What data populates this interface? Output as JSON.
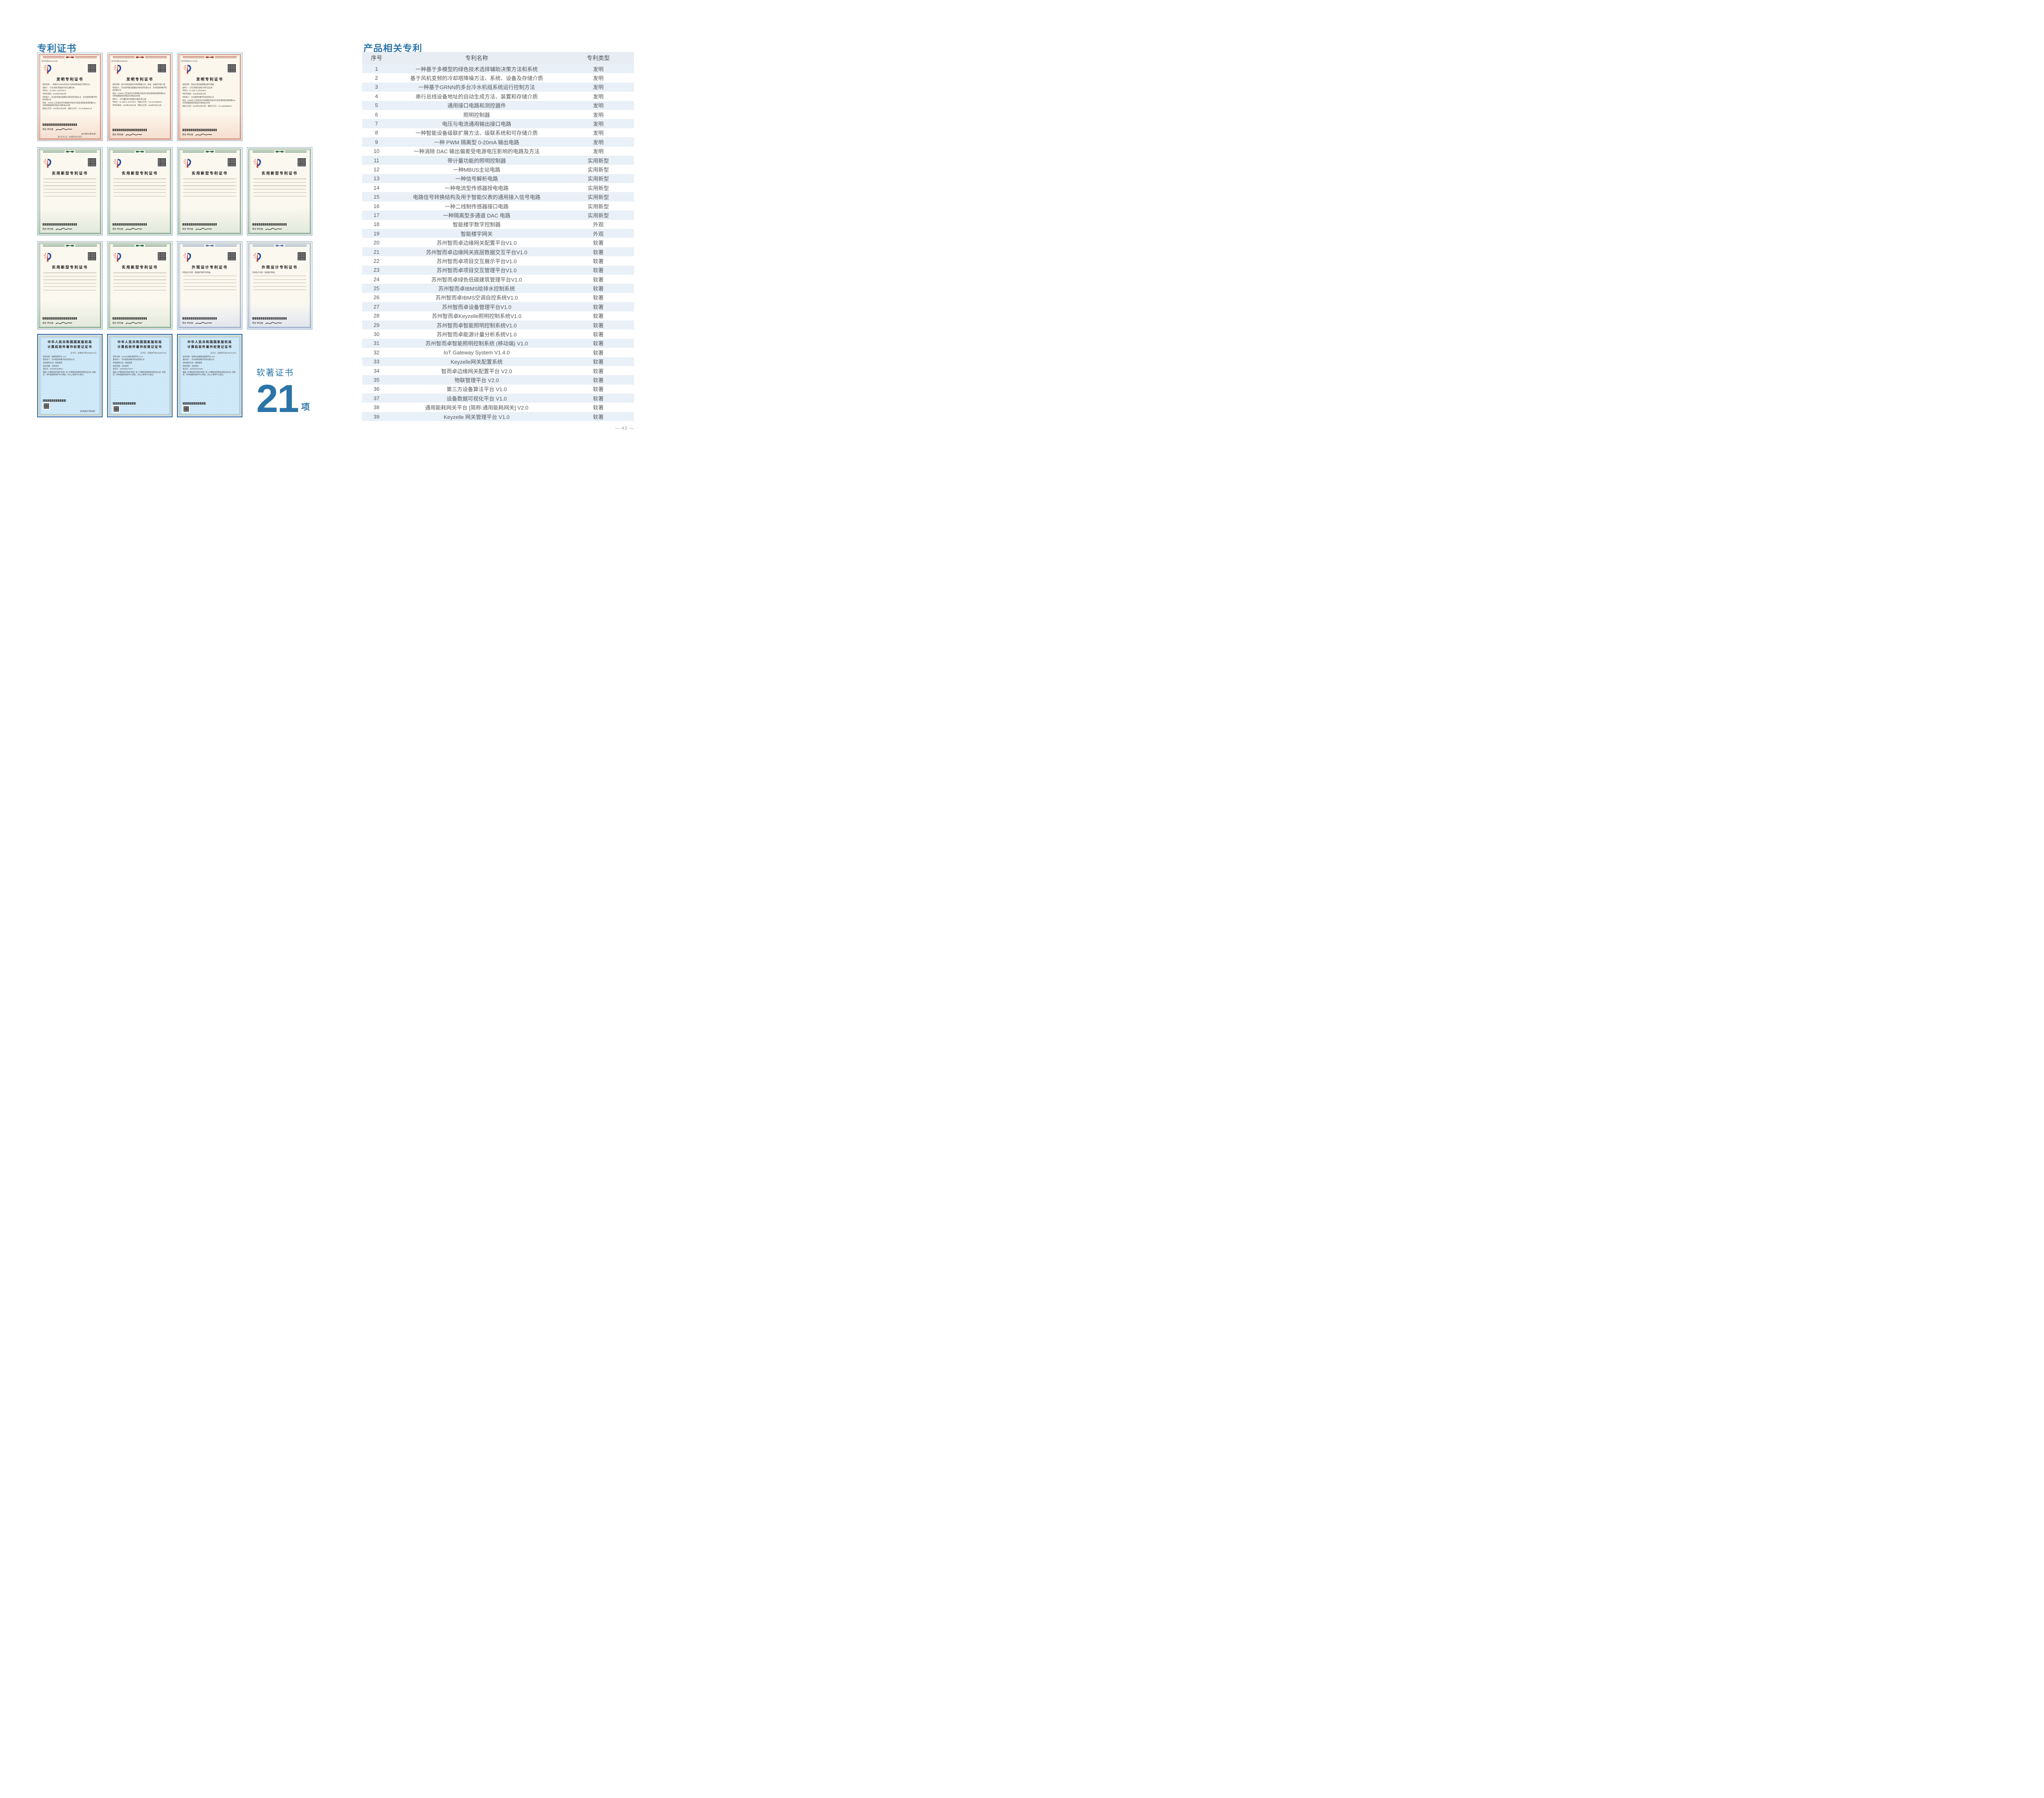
{
  "page": {
    "left_section_title": "专利证书",
    "right_section_title": "产品相关专利",
    "software_cert_label": "软著证书",
    "software_cert_count": "21",
    "software_cert_unit": "项",
    "page_number": "— 43 —"
  },
  "colors": {
    "accent": "#2b74a8",
    "table_header_bg": "#e7edf3",
    "table_band": "#e9f0f7",
    "table_text": "#55585c",
    "invention_theme": "#a63c32",
    "utility_theme": "#2e6b4b",
    "design_theme": "#5b79a6",
    "software_paper": "#cfe8f8"
  },
  "table": {
    "columns": [
      "序号",
      "专利名称",
      "专利类型"
    ],
    "rows": [
      {
        "no": "1",
        "name": "一种基于多模型的绿色技术选择辅助决策方法和系统",
        "type": "发明"
      },
      {
        "no": "2",
        "name": "基于风机变频的冷却塔降噪方法、系统、设备及存储介质",
        "type": "发明"
      },
      {
        "no": "3",
        "name": "一种基于GRNN的多台冷水机组系统运行控制方法",
        "type": "发明"
      },
      {
        "no": "4",
        "name": "串行总线设备地址的自动生成方法、装置和存储介质",
        "type": "发明"
      },
      {
        "no": "5",
        "name": "通用接口电路和测控器件",
        "type": "发明"
      },
      {
        "no": "6",
        "name": "照明控制器",
        "type": "发明"
      },
      {
        "no": "7",
        "name": "电压与电流通用输出接口电路",
        "type": "发明"
      },
      {
        "no": "8",
        "name": "一种智能设备级联扩展方法、级联系统和可存储介质",
        "type": "发明"
      },
      {
        "no": "9",
        "name": "一种 PWM 隔离型 0-20mA 输出电路",
        "type": "发明"
      },
      {
        "no": "10",
        "name": "一种消除 DAC 输出偏差受电源电压影响的电路及方法",
        "type": "发明"
      },
      {
        "no": "11",
        "name": "带计量功能的照明控制器",
        "type": "实用新型"
      },
      {
        "no": "12",
        "name": "一种MBUS主站电路",
        "type": "实用新型"
      },
      {
        "no": "13",
        "name": "一种信号解析电路",
        "type": "实用新型"
      },
      {
        "no": "14",
        "name": "一种电流型传感器授电电路",
        "type": "实用新型"
      },
      {
        "no": "15",
        "name": "电路信号转换结构及用于智能仪表的通用接入信号电路",
        "type": "实用新型"
      },
      {
        "no": "16",
        "name": "一种二线制传感器接口电路",
        "type": "实用新型"
      },
      {
        "no": "17",
        "name": "一种隔离型多通道 DAC 电路",
        "type": "实用新型"
      },
      {
        "no": "18",
        "name": "智能楼宇数字控制器",
        "type": "外观"
      },
      {
        "no": "19",
        "name": "智能楼宇网关",
        "type": "外观"
      },
      {
        "no": "20",
        "name": "苏州智而卓边缘网关配置平台V1.0",
        "type": "软著"
      },
      {
        "no": "21",
        "name": "苏州智而卓边缘网关底层数据交互平台V1.0",
        "type": "软著"
      },
      {
        "no": "22",
        "name": "苏州智而卓项目交互展示平台V1.0",
        "type": "软著"
      },
      {
        "no": "23",
        "name": "苏州智而卓项目交互管理平台V1.0",
        "type": "软著"
      },
      {
        "no": "24",
        "name": "苏州智而卓绿色低碳建筑管理平台V1.0",
        "type": "软著"
      },
      {
        "no": "25",
        "name": "苏州智而卓IBMS给排水控制系统",
        "type": "软著"
      },
      {
        "no": "26",
        "name": "苏州智而卓IBMS空调自控系统V1.0",
        "type": "软著"
      },
      {
        "no": "27",
        "name": "苏州智而卓设备管理平台V1.0",
        "type": "软著"
      },
      {
        "no": "28",
        "name": "苏州智而卓Keyzelle照明控制系统V1.0",
        "type": "软著"
      },
      {
        "no": "29",
        "name": "苏州智而卓智能照明控制系统V1.0",
        "type": "软著"
      },
      {
        "no": "30",
        "name": "苏州智而卓能源计量分析系统V1.0",
        "type": "软著"
      },
      {
        "no": "31",
        "name": "苏州智而卓智能照明控制系统 (移动端) V1.0",
        "type": "软著"
      },
      {
        "no": "32",
        "name": "IoT Gateway System V1.4.0",
        "type": "软著"
      },
      {
        "no": "33",
        "name": "Keyzelle网关配置系统",
        "type": "软著"
      },
      {
        "no": "34",
        "name": "智而卓边缘网关配置平台 V2.0",
        "type": "软著"
      },
      {
        "no": "35",
        "name": "物联管理平台 V2.0",
        "type": "软著"
      },
      {
        "no": "36",
        "name": "第三方设备算法平台 V1.0",
        "type": "软著"
      },
      {
        "no": "37",
        "name": "设备数据可视化平台 V1.0",
        "type": "软著"
      },
      {
        "no": "38",
        "name": "通用能耗网关平台 [简称:通用能耗网关] V2.0",
        "type": "软著"
      },
      {
        "no": "39",
        "name": "Keyzelle 网关管理平台 V1.0",
        "type": "软著"
      }
    ]
  },
  "certificates": {
    "row1": [
      {
        "type": "invention",
        "title": "发明专利证书",
        "cert_no": "证书号第6661534号",
        "signer": "局长  申长雨",
        "date": "2024年01月30日",
        "footer": "第1页(共2页)　其他事项参见续页",
        "fields": [
          "发明名称：一种基于GRNN的多台冷水机组系统运行控制方法",
          "发明人：马杰;袁琦;李国建;孙日近;董红林",
          "专利号：ZL 2022 1 0427340.7",
          "专利申请日：2022年04月22日",
          "专利权人：苏州思萃融合基建技术研究所有限公司　苏州智而卓数字科技有限公司",
          "地址：215000 江苏省苏州市相城经济技术开发区澄阳街道澄阳路116号阳澄湖国际科创园3号楼4层408室",
          "授权公告日：2024年01月30日　授权公告号：CN 114636212 B"
        ]
      },
      {
        "type": "invention",
        "title": "发明专利证书",
        "cert_no": "证书号第8000883号",
        "signer": "局长  申长雨",
        "fields": [
          "发明名称：基于风机变频的冷却塔降噪方法、系统、设备及存储介质",
          "专利权人：苏州思萃融合基建技术研究所有限公司　苏州智而卓数字科技有限公司",
          "地址：215000 江苏省苏州市相城经济技术开发区澄阳街道澄阳路116号阳澄湖国际科创园3号楼4层408室",
          "发明人：马杰;董红林;李国建;沐俊华;彭士通",
          "专利号：ZL 2022 1 0427336.0　授权公告号：CN 114754603 B",
          "专利申请日：2022年04月22日　授权公告日：2025年06月13日"
        ]
      },
      {
        "type": "invention",
        "title": "发明专利证书",
        "cert_no": "证书号第6817761号",
        "signer": "局长  申长雨",
        "fields": [
          "发明名称：电压与电流通用输出接口电路",
          "发明人：马杰;李建池;黄亮;刘炜;吴志祥",
          "专利号：ZL 2022 1 1004495.6",
          "专利申请日：2022年08月22日",
          "专利权人：苏州智而卓数字科技有限公司",
          "地址：215000 江苏省苏州市相城经济技术开发区澄阳街道澄阳路116号阳澄湖国际科创园3号楼4层402室",
          "授权公告日：2024年03月22日　授权公告号：CN 115268558 B"
        ]
      }
    ],
    "row2": [
      {
        "type": "utility",
        "title": "实用新型专利证书",
        "signer": "局长  申长雨"
      },
      {
        "type": "utility",
        "title": "实用新型专利证书",
        "signer": "局长  申长雨"
      },
      {
        "type": "utility",
        "title": "实用新型专利证书",
        "signer": "局长  申长雨"
      },
      {
        "type": "utility",
        "title": "实用新型专利证书",
        "signer": "局长  申长雨"
      }
    ],
    "row3": [
      {
        "type": "utility",
        "title": "实用新型专利证书",
        "signer": "局长  申长雨"
      },
      {
        "type": "utility",
        "title": "实用新型专利证书",
        "signer": "局长  申长雨"
      },
      {
        "type": "design",
        "title": "外观设计专利证书",
        "signer": "局长  申长雨",
        "fields": [
          "外观设计名称：智能楼宇数字控制器"
        ]
      },
      {
        "type": "design",
        "title": "外观设计专利证书",
        "signer": "局长  申长雨",
        "fields": [
          "外观设计名称：智能楼宇网关"
        ]
      }
    ],
    "row4": [
      {
        "type": "software",
        "title": "中华人民共和国国家版权局\n计算机软件著作权登记证书",
        "cert_no": "证书号：软著登字第15865015号",
        "date": "2025年07月09日",
        "fields": [
          "软件名称：物联管理平台 V2.0",
          "著作权人：苏州智而卓数字科技有限公司",
          "权利取得方式：原始取得",
          "权利范围：全部权利",
          "登记号：2025SR1208817",
          "根据《计算机软件保护条例》和《计算机软件著作权登记办法》的规定，经中国版权保护中心审核，对以上事项予以登记。"
        ]
      },
      {
        "type": "software",
        "title": "中华人民共和国国家版权局\n计算机软件著作权登记证书",
        "cert_no": "证书号：软著登字第15835675号",
        "fields": [
          "软件名称：Keyzelle网关管理平台 V1.0",
          "著作权人：苏州智而卓数字科技有限公司",
          "权利取得方式：原始取得",
          "权利范围：全部权利",
          "登记号：2025SR1179477",
          "根据《计算机软件保护条例》和《计算机软件著作权登记办法》的规定，经中国版权保护中心审核，对以上事项予以登记。"
        ]
      },
      {
        "type": "software",
        "title": "中华人民共和国国家版权局\n计算机软件著作权登记证书",
        "cert_no": "证书号：软著登字第15863449号",
        "fields": [
          "软件名称：智而卓边缘网关配置平台 V2.0",
          "著作权人：苏州智而卓数字科技有限公司",
          "权利取得方式：原始取得",
          "权利范围：全部权利",
          "登记号：2025SR1207251",
          "根据《计算机软件保护条例》和《计算机软件著作权登记办法》的规定，经中国版权保护中心审核，对以上事项予以登记。"
        ]
      }
    ]
  }
}
